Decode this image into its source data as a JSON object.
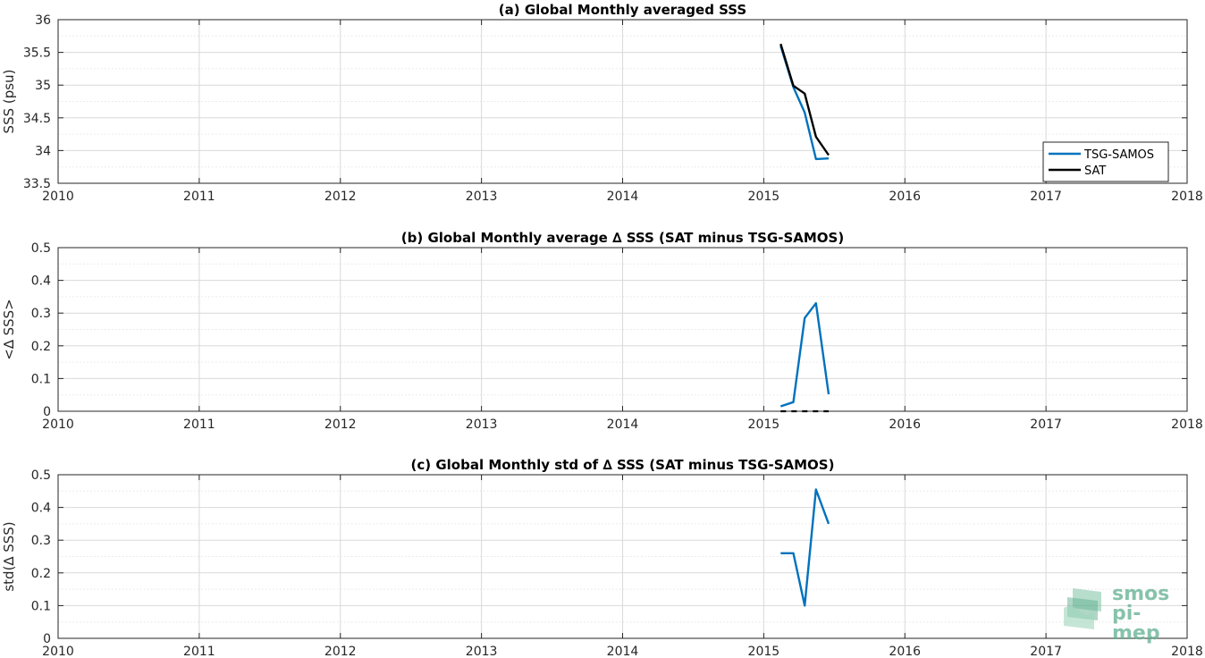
{
  "colors": {
    "tsg": "#0072BD",
    "sat": "#000000",
    "grid": "#d9d9d9",
    "minor_grid": "#e6e6e6",
    "axis": "#262626",
    "logo": "#5fae8f"
  },
  "logo": {
    "line1": "smos",
    "line2": "pi-mep"
  },
  "chart_data": [
    {
      "type": "line",
      "title": "(a) Global Monthly averaged SSS",
      "xlabel": "",
      "ylabel": "SSS (psu)",
      "xlim": [
        2010,
        2018
      ],
      "ylim": [
        33.5,
        36
      ],
      "xticks": [
        "2010",
        "2011",
        "2012",
        "2013",
        "2014",
        "2015",
        "2016",
        "2017",
        "2018"
      ],
      "yticks": [
        "33.5",
        "34",
        "34.5",
        "35",
        "35.5",
        "36"
      ],
      "grid": true,
      "legend": "bottom-right",
      "x": [
        2015.12,
        2015.21,
        2015.29,
        2015.37,
        2015.46
      ],
      "series": [
        {
          "name": "TSG-SAMOS",
          "color": "#0072BD",
          "dashed": false,
          "values": [
            35.6,
            34.97,
            34.58,
            33.87,
            33.88
          ]
        },
        {
          "name": "SAT",
          "color": "#000000",
          "dashed": false,
          "values": [
            35.63,
            34.99,
            34.87,
            34.21,
            33.93
          ]
        }
      ]
    },
    {
      "type": "line",
      "title": "(b) Global Monthly average ∆ SSS (SAT minus TSG-SAMOS)",
      "xlabel": "",
      "ylabel": "<∆ SSS>",
      "xlim": [
        2010,
        2018
      ],
      "ylim": [
        0,
        0.5
      ],
      "xticks": [
        "2010",
        "2011",
        "2012",
        "2013",
        "2014",
        "2015",
        "2016",
        "2017",
        "2018"
      ],
      "yticks": [
        "0",
        "0.1",
        "0.2",
        "0.3",
        "0.4",
        "0.5"
      ],
      "grid": true,
      "legend": "none",
      "x": [
        2015.12,
        2015.21,
        2015.29,
        2015.37,
        2015.46
      ],
      "series": [
        {
          "name": "",
          "color": "#0072BD",
          "dashed": false,
          "values": [
            0.015,
            0.028,
            0.285,
            0.33,
            0.052
          ]
        },
        {
          "name": "",
          "color": "#000000",
          "dashed": true,
          "values": [
            0,
            0,
            0,
            0,
            0
          ]
        }
      ]
    },
    {
      "type": "line",
      "title": "(c) Global Monthly std of ∆ SSS (SAT minus TSG-SAMOS)",
      "xlabel": "",
      "ylabel": "std(∆ SSS)",
      "xlim": [
        2010,
        2018
      ],
      "ylim": [
        0,
        0.5
      ],
      "xticks": [
        "2010",
        "2011",
        "2012",
        "2013",
        "2014",
        "2015",
        "2016",
        "2017",
        "2018"
      ],
      "yticks": [
        "0",
        "0.1",
        "0.2",
        "0.3",
        "0.4",
        "0.5"
      ],
      "grid": true,
      "legend": "none",
      "x": [
        2015.12,
        2015.21,
        2015.29,
        2015.37,
        2015.46
      ],
      "series": [
        {
          "name": "",
          "color": "#0072BD",
          "dashed": false,
          "values": [
            0.26,
            0.26,
            0.1,
            0.455,
            0.35
          ]
        }
      ]
    }
  ]
}
